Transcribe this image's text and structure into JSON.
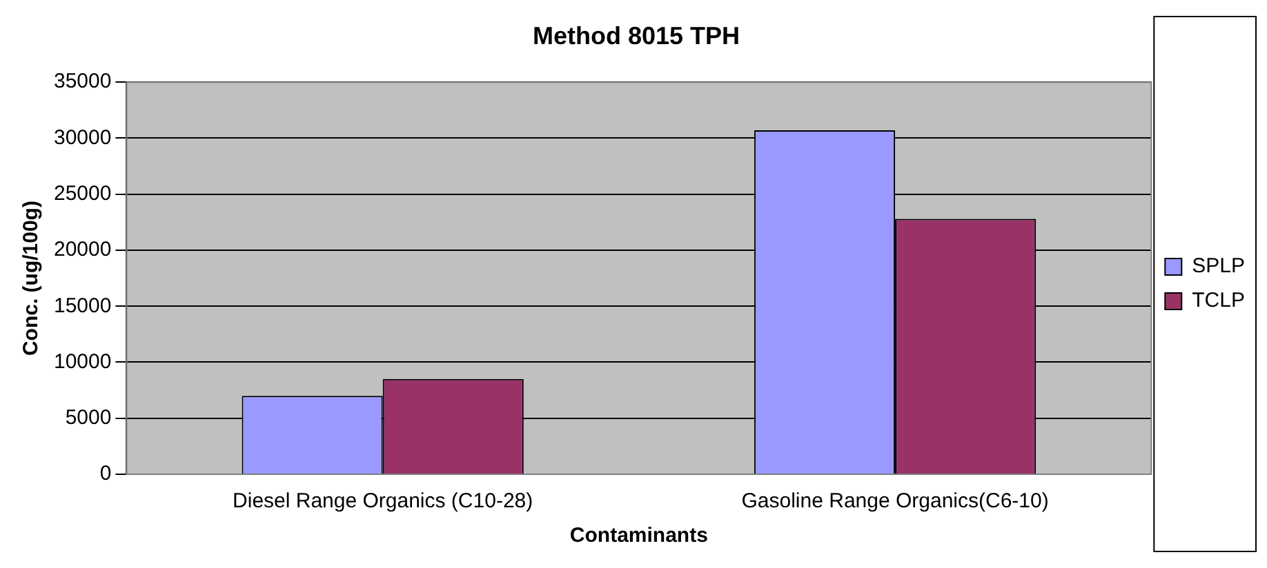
{
  "chart_data": {
    "type": "bar",
    "title": "Method 8015 TPH",
    "xlabel": "Contaminants",
    "ylabel": "Conc. (ug/100g)",
    "categories": [
      "Diesel Range Organics (C10-28)",
      "Gasoline Range Organics(C6-10)"
    ],
    "series": [
      {
        "name": "SPLP",
        "color": "#9999ff",
        "values": [
          7000,
          30700
        ]
      },
      {
        "name": "TCLP",
        "color": "#993366",
        "values": [
          8500,
          22800
        ]
      }
    ],
    "ylim": [
      0,
      35000
    ],
    "yticks": [
      0,
      5000,
      10000,
      15000,
      20000,
      25000,
      30000,
      35000
    ],
    "grid": "y",
    "legend": "right"
  }
}
